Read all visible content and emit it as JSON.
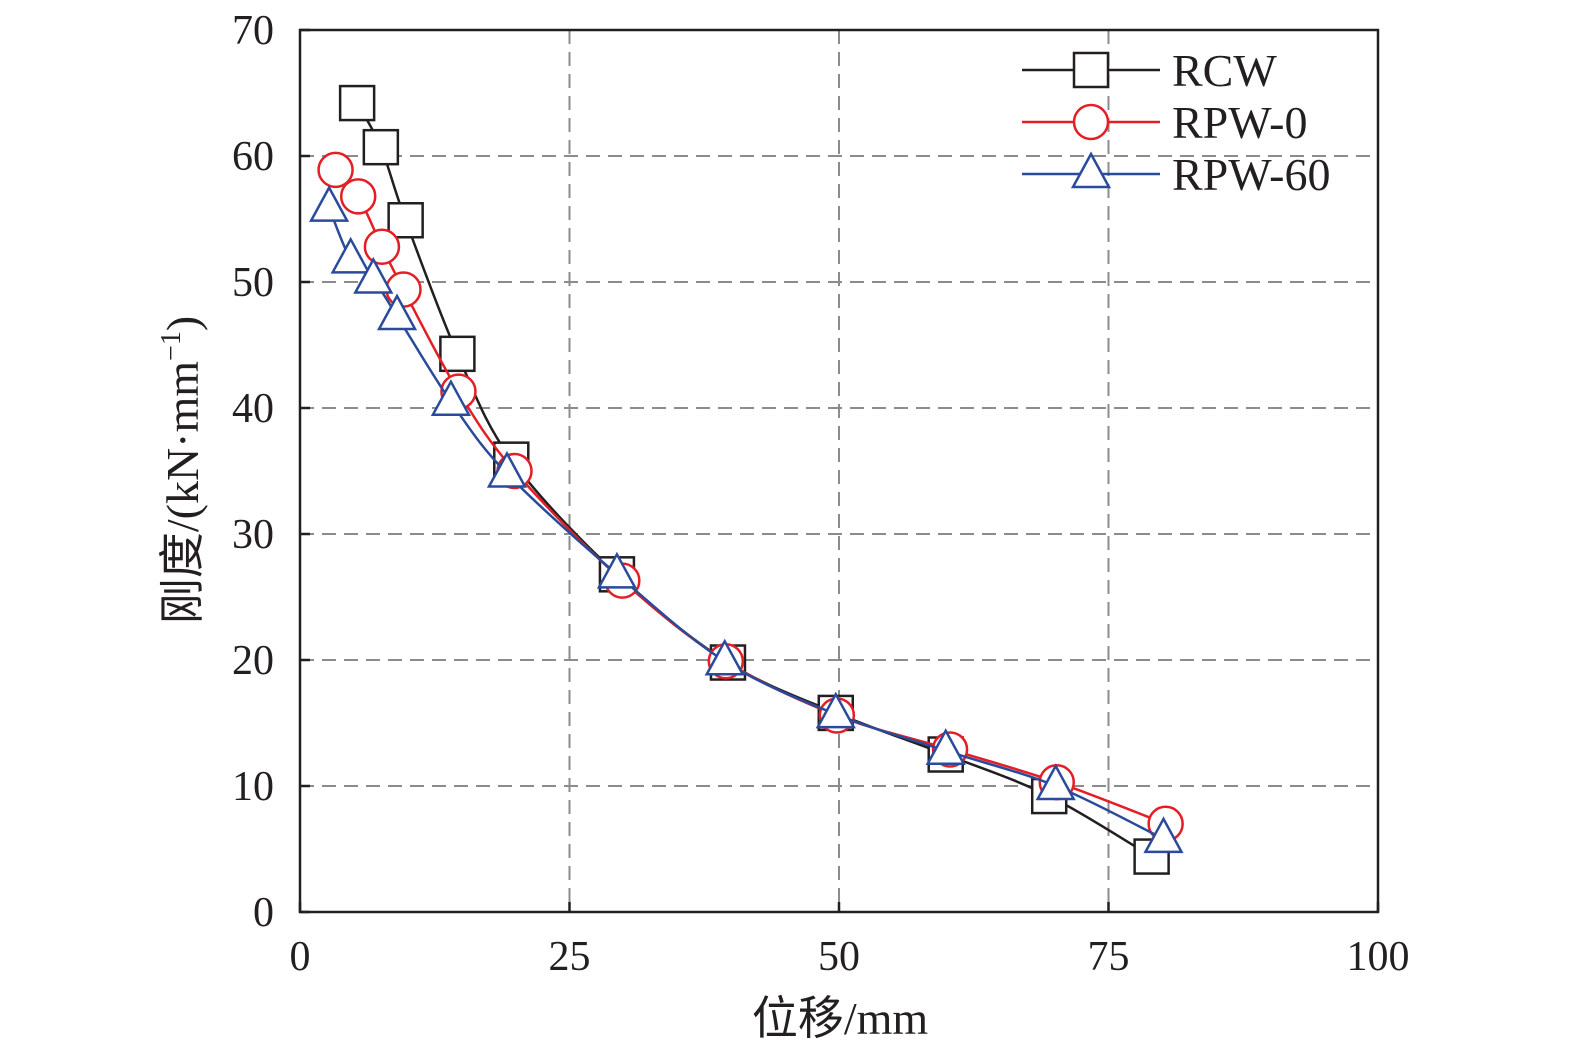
{
  "chart_data": {
    "type": "line",
    "xlabel": "位移/mm",
    "ylabel": "刚度/(kN·mm",
    "ylabel_sup": "−1",
    "ylabel_close": ")",
    "xlim": [
      0,
      100
    ],
    "ylim": [
      0,
      70
    ],
    "xticks": [
      0,
      25,
      50,
      75,
      100
    ],
    "yticks": [
      0,
      10,
      20,
      30,
      40,
      50,
      60,
      70
    ],
    "grid": true,
    "legend_position": "top-right",
    "series": [
      {
        "name": "RCW",
        "color": "#231f20",
        "marker": "square",
        "x": [
          5.3,
          7.5,
          9.8,
          14.6,
          19.6,
          29.4,
          39.7,
          49.7,
          59.9,
          69.5,
          79.0
        ],
        "y": [
          64.2,
          60.7,
          54.9,
          44.3,
          35.9,
          26.8,
          19.8,
          15.8,
          12.5,
          9.2,
          4.4
        ]
      },
      {
        "name": "RPW-0",
        "color": "#e31e24",
        "marker": "circle",
        "x": [
          3.3,
          5.4,
          7.6,
          9.6,
          14.7,
          19.9,
          29.9,
          39.5,
          49.8,
          60.3,
          70.2,
          80.3
        ],
        "y": [
          58.9,
          56.8,
          52.8,
          49.4,
          41.3,
          35.0,
          26.3,
          19.9,
          15.6,
          12.9,
          10.3,
          7.0
        ]
      },
      {
        "name": "RPW-60",
        "color": "#2a4b9b",
        "marker": "triangle",
        "x": [
          2.7,
          4.7,
          6.8,
          9.0,
          14.0,
          19.2,
          29.4,
          39.4,
          49.7,
          59.9,
          70.1,
          80.1
        ],
        "y": [
          55.9,
          51.8,
          50.2,
          47.3,
          40.5,
          34.8,
          26.8,
          19.9,
          15.7,
          12.8,
          10.0,
          5.8
        ]
      }
    ]
  }
}
